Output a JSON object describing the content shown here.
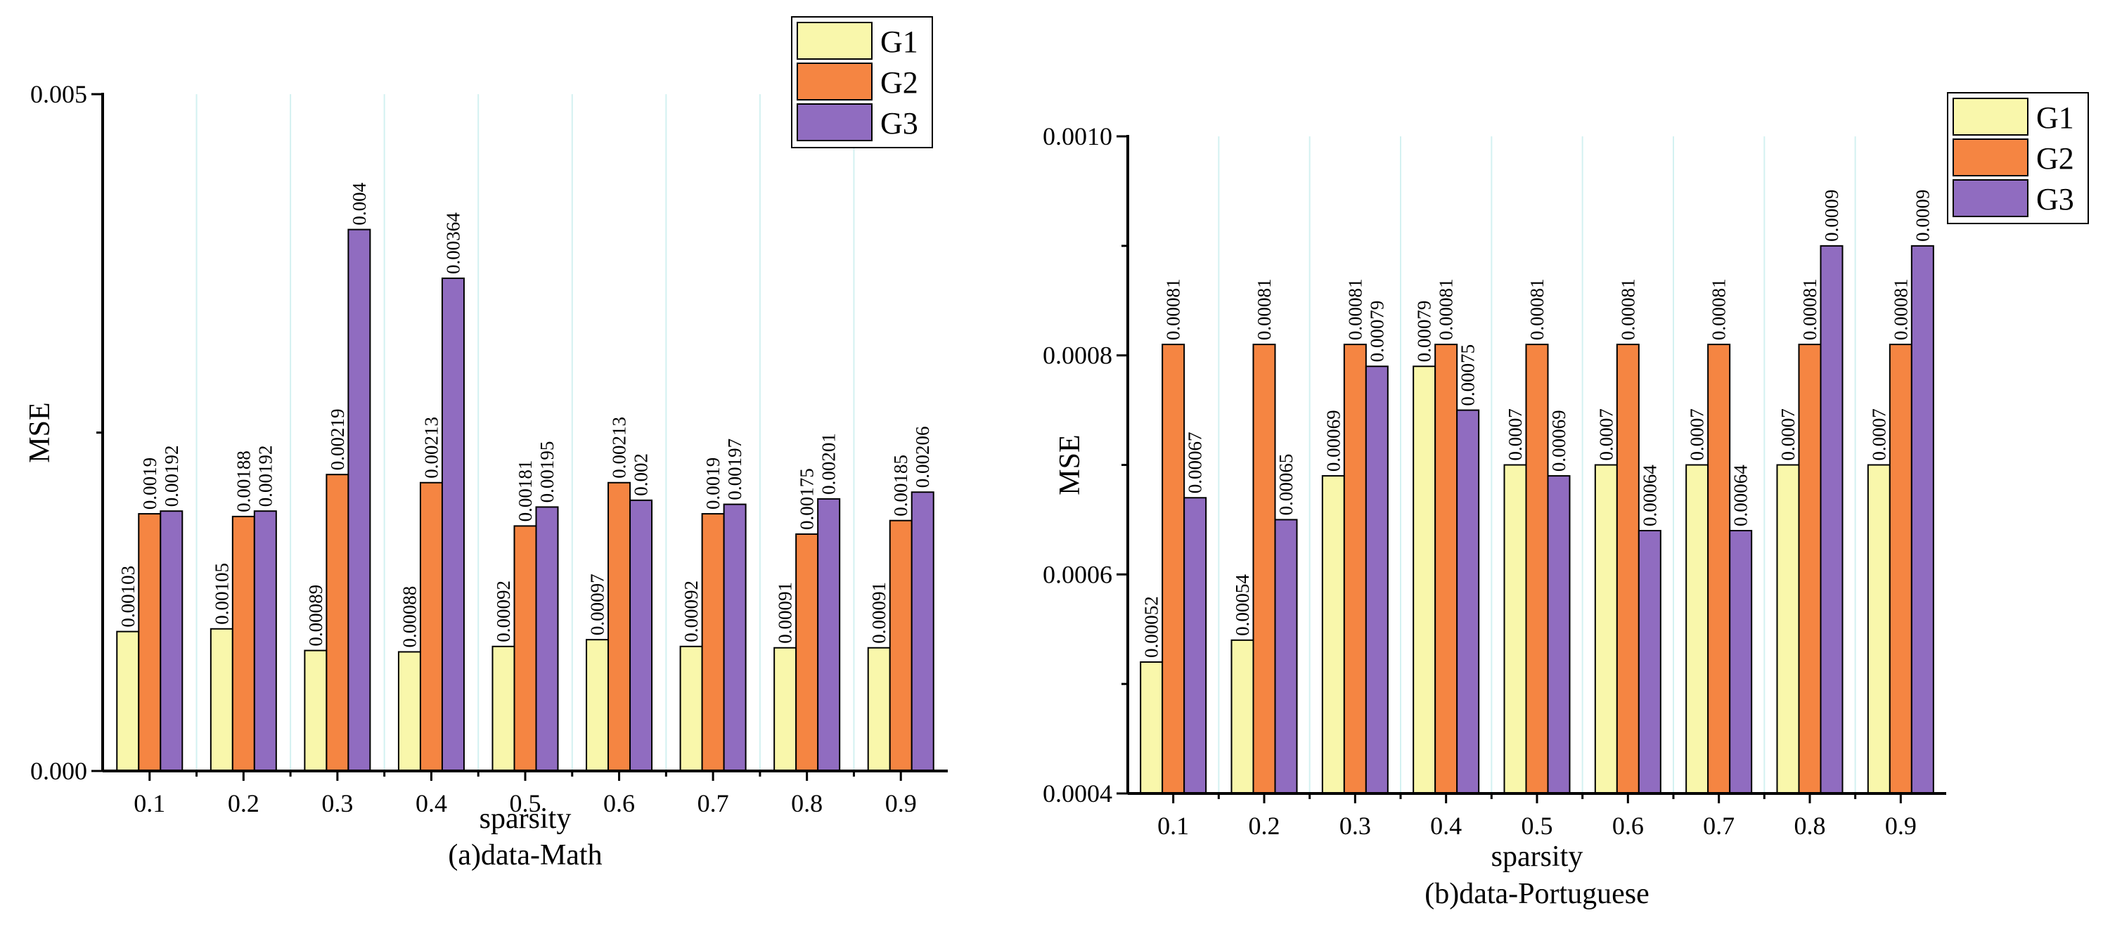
{
  "colors": {
    "G1": "#f9f7ab",
    "G2": "#f58542",
    "G3": "#906cc0",
    "grid": "#d3f1f1"
  },
  "chart_data": [
    {
      "type": "bar",
      "caption": "(a)data-Math",
      "xlabel": "sparsity",
      "ylabel": "MSE",
      "categories": [
        "0.1",
        "0.2",
        "0.3",
        "0.4",
        "0.5",
        "0.6",
        "0.7",
        "0.8",
        "0.9"
      ],
      "ylim": [
        0,
        0.005
      ],
      "yticks": [
        0,
        0.0025,
        0.005
      ],
      "ytick_labels": [
        "0.000",
        "",
        "0.005"
      ],
      "grid": "vertical",
      "legend_position": "top-right",
      "series": [
        {
          "name": "G1",
          "values": [
            0.00103,
            0.00105,
            0.00089,
            0.00088,
            0.00092,
            0.00097,
            0.00092,
            0.00091,
            0.00091
          ],
          "labels": [
            "0.00103",
            "0.00105",
            "0.00089",
            "0.00088",
            "0.00092",
            "0.00097",
            "0.00092",
            "0.00091",
            "0.00091"
          ]
        },
        {
          "name": "G2",
          "values": [
            0.0019,
            0.00188,
            0.00219,
            0.00213,
            0.00181,
            0.00213,
            0.0019,
            0.00175,
            0.00185
          ],
          "labels": [
            "0.0019",
            "0.00188",
            "0.00219",
            "0.00213",
            "0.00181",
            "0.00213",
            "0.0019",
            "0.00175",
            "0.00185"
          ]
        },
        {
          "name": "G3",
          "values": [
            0.00192,
            0.00192,
            0.004,
            0.00364,
            0.00195,
            0.002,
            0.00197,
            0.00201,
            0.00206
          ],
          "labels": [
            "0.00192",
            "0.00192",
            "0.004",
            "0.00364",
            "0.00195",
            "0.002",
            "0.00197",
            "0.00201",
            "0.00206"
          ]
        }
      ]
    },
    {
      "type": "bar",
      "caption": "(b)data-Portuguese",
      "xlabel": "sparsity",
      "ylabel": "MSE",
      "categories": [
        "0.1",
        "0.2",
        "0.3",
        "0.4",
        "0.5",
        "0.6",
        "0.7",
        "0.8",
        "0.9"
      ],
      "ylim": [
        0.0004,
        0.001
      ],
      "yticks": [
        0.0004,
        0.0005,
        0.0006,
        0.0007,
        0.0008,
        0.0009,
        0.001
      ],
      "ytick_labels": [
        "0.0004",
        "",
        "0.0006",
        "",
        "0.0008",
        "",
        "0.0010"
      ],
      "grid": "vertical",
      "legend_position": "top-right",
      "series": [
        {
          "name": "G1",
          "values": [
            0.00052,
            0.00054,
            0.00069,
            0.00079,
            0.0007,
            0.0007,
            0.0007,
            0.0007,
            0.0007
          ],
          "labels": [
            "0.00052",
            "0.00054",
            "0.00069",
            "0.00079",
            "0.0007",
            "0.0007",
            "0.0007",
            "0.0007",
            "0.0007"
          ]
        },
        {
          "name": "G2",
          "values": [
            0.00081,
            0.00081,
            0.00081,
            0.00081,
            0.00081,
            0.00081,
            0.00081,
            0.00081,
            0.00081
          ],
          "labels": [
            "0.00081",
            "0.00081",
            "0.00081",
            "0.00081",
            "0.00081",
            "0.00081",
            "0.00081",
            "0.00081",
            "0.00081"
          ]
        },
        {
          "name": "G3",
          "values": [
            0.00067,
            0.00065,
            0.00079,
            0.00075,
            0.00069,
            0.00064,
            0.00064,
            0.0009,
            0.0009
          ],
          "labels": [
            "0.00067",
            "0.00065",
            "0.00079",
            "0.00075",
            "0.00069",
            "0.00064",
            "0.00064",
            "0.0009",
            "0.0009"
          ]
        }
      ]
    }
  ]
}
